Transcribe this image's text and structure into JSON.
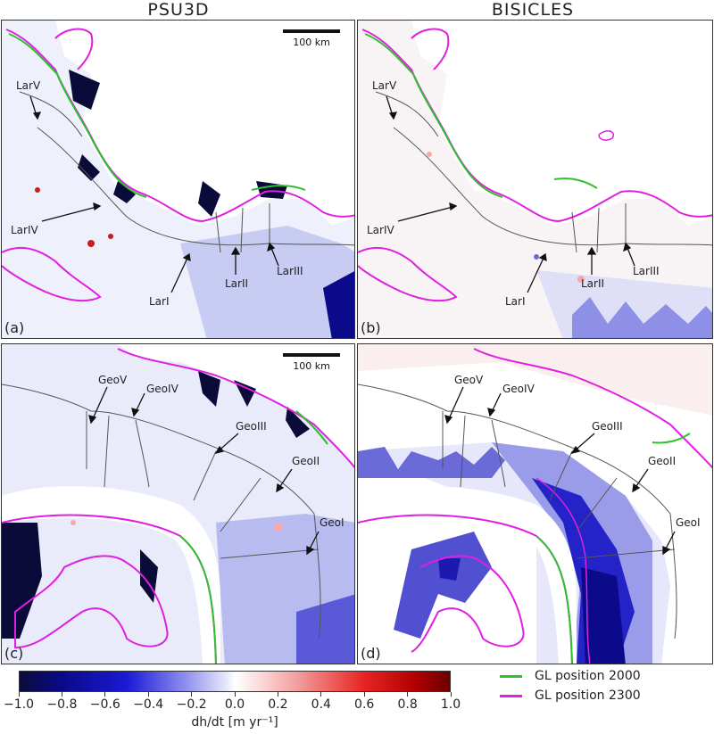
{
  "columns": {
    "left_title": "PSU3D",
    "right_title": "BISICLES"
  },
  "scale_bar": "100 km",
  "panels": {
    "a": {
      "label": "(a)",
      "basins": [
        "LarV",
        "LarIV",
        "LarII",
        "LarI",
        "LarIII"
      ]
    },
    "b": {
      "label": "(b)",
      "basins": [
        "LarV",
        "LarIV",
        "LarII",
        "LarI",
        "LarIII"
      ]
    },
    "c": {
      "label": "(c)",
      "basins": [
        "GeoV",
        "GeoIV",
        "GeoIII",
        "GeoII",
        "GeoI"
      ]
    },
    "d": {
      "label": "(d)",
      "basins": [
        "GeoV",
        "GeoIV",
        "GeoIII",
        "GeoII",
        "GeoI"
      ]
    }
  },
  "colorbar": {
    "ticks": [
      "−1.0",
      "−0.8",
      "−0.6",
      "−0.4",
      "−0.2",
      "0.0",
      "0.2",
      "0.4",
      "0.6",
      "0.8",
      "1.0"
    ],
    "label": "dh/dt [m yr⁻¹]",
    "min_color": "#0b0b3a",
    "zero_color": "#ffffff",
    "max_color": "#6b0000"
  },
  "legend": [
    {
      "label": "GL position 2000",
      "color": "#2fbf2f"
    },
    {
      "label": "GL position 2300",
      "color": "#e020e0"
    }
  ]
}
